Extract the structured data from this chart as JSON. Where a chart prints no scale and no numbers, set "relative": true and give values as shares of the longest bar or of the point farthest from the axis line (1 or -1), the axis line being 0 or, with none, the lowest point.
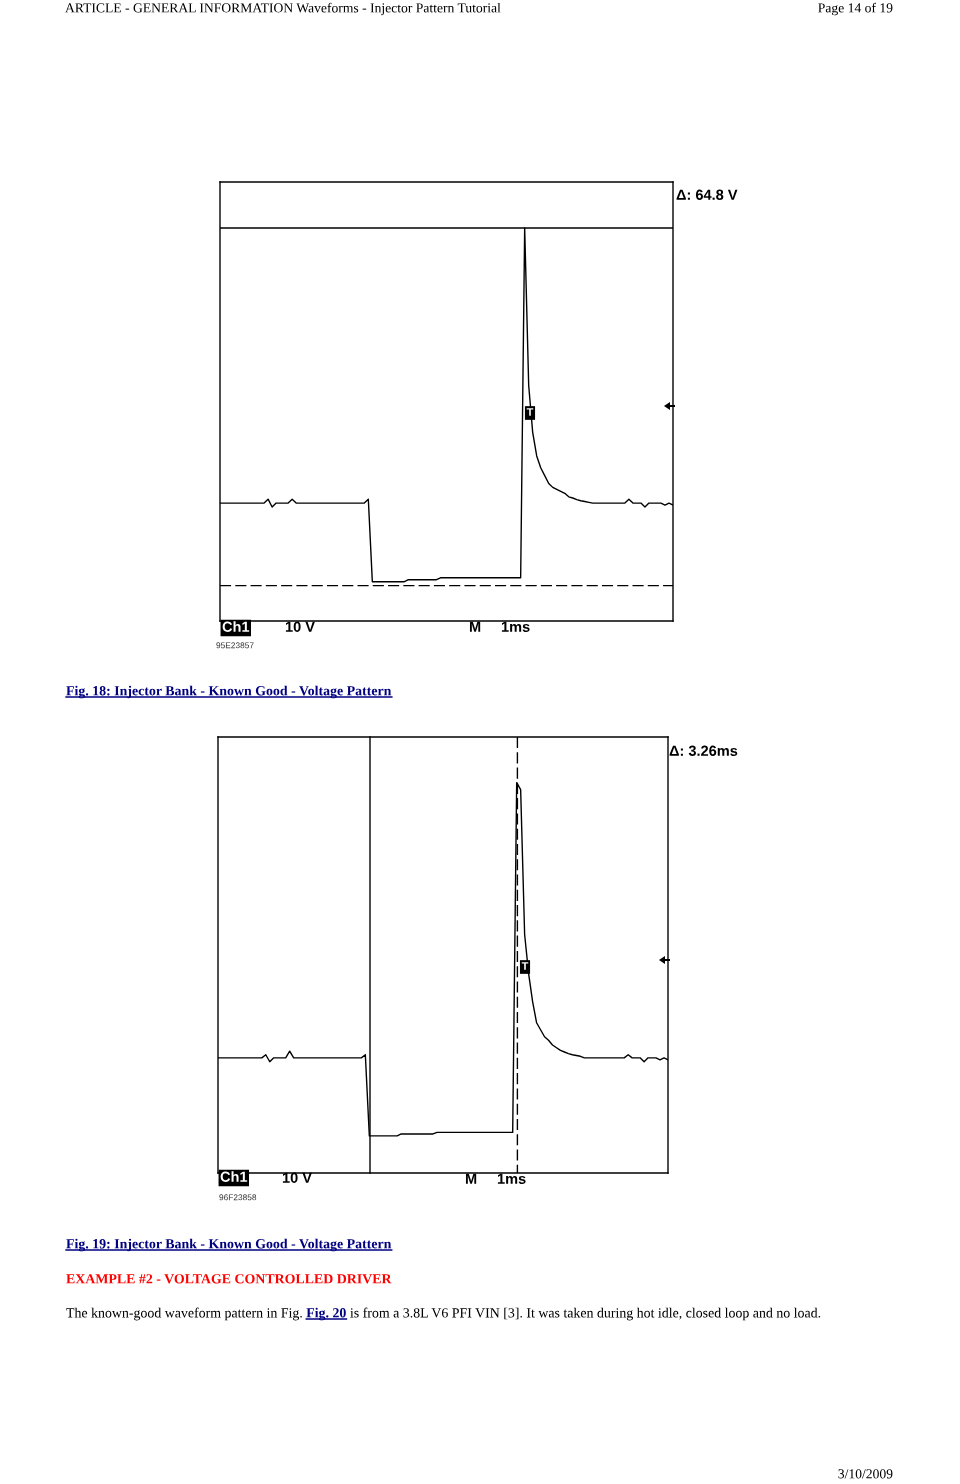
{
  "chart_data": [
    {
      "type": "line",
      "title": "Fig. 18: Injector Bank - Known Good - Voltage Pattern",
      "relative": true,
      "categories": [
        null,
        null,
        null,
        null,
        null,
        null,
        null,
        null,
        null,
        null,
        null,
        null,
        null,
        null,
        null,
        null,
        null,
        null,
        null,
        null,
        null,
        null,
        null,
        null,
        null,
        null,
        null,
        null,
        null,
        null,
        null,
        null,
        null,
        null,
        null,
        null,
        null,
        null,
        null,
        null,
        null,
        null,
        null,
        null,
        null,
        null,
        null,
        null,
        null,
        null,
        null,
        null,
        null,
        null,
        null,
        null,
        null,
        null,
        null,
        null,
        null,
        null,
        null,
        null,
        null,
        null,
        null,
        null,
        null,
        null,
        null,
        null,
        null,
        null,
        null,
        null,
        null,
        null,
        null,
        null,
        null,
        null,
        null,
        null,
        null,
        null,
        null,
        null,
        null,
        null,
        null,
        null,
        null,
        null,
        null,
        null,
        null,
        null,
        null,
        null,
        null,
        null,
        null,
        null,
        null,
        null,
        null,
        null,
        null,
        null,
        null,
        null,
        null,
        null
      ],
      "series": [
        {
          "color": "#000000",
          "values": [
            0.3,
            0.3,
            0.3,
            0.3,
            0.3,
            0.3,
            0.3,
            0.3,
            0.3,
            0.3,
            0.3,
            0.3,
            0.31,
            0.29,
            0.3,
            0.3,
            0.3,
            0.3,
            0.31,
            0.3,
            0.3,
            0.3,
            0.3,
            0.3,
            0.3,
            0.3,
            0.3,
            0.3,
            0.3,
            0.3,
            0.3,
            0.3,
            0.3,
            0.3,
            0.3,
            0.3,
            0.3,
            0.31,
            0.1,
            0.1,
            0.1,
            0.1,
            0.1,
            0.1,
            0.1,
            0.1,
            0.1,
            0.105,
            0.105,
            0.105,
            0.105,
            0.105,
            0.105,
            0.105,
            0.105,
            0.11,
            0.11,
            0.11,
            0.11,
            0.11,
            0.11,
            0.11,
            0.11,
            0.11,
            0.11,
            0.11,
            0.11,
            0.11,
            0.11,
            0.11,
            0.11,
            0.11,
            0.11,
            0.11,
            0.11,
            0.11,
            1,
            0.6,
            0.48,
            0.42,
            0.39,
            0.37,
            0.35,
            0.34,
            0.335,
            0.33,
            0.325,
            0.316,
            0.313,
            0.309,
            0.306,
            0.304,
            0.302,
            0.3,
            0.3,
            0.3,
            0.3,
            0.3,
            0.3,
            0.3,
            0.3,
            0.3,
            0.31,
            0.3,
            0.3,
            0.3,
            0.29,
            0.3,
            0.3,
            0.3,
            0.3,
            0.295,
            0.3,
            0.295
          ]
        }
      ],
      "ref_lines": [
        {
          "axis": "y",
          "value": 1,
          "color": "#000000",
          "line_style": "solid"
        },
        {
          "axis": "y",
          "value": 0.09,
          "color": "#000000",
          "line_style": "dashed"
        }
      ],
      "annotations": [
        "ARTICLE - GENERAL INFORMATION Waveforms - Injector Pattern Tutorial",
        "Page 14 of 19",
        "Δ: 64.8 V",
        "Ch1",
        "10 V",
        "M",
        "1ms",
        "T",
        "95E23857"
      ]
    },
    {
      "type": "line",
      "title": "Fig. 19: Injector Bank - Known Good - Voltage Pattern",
      "relative": true,
      "categories": [
        null,
        null,
        null,
        null,
        null,
        null,
        null,
        null,
        null,
        null,
        null,
        null,
        null,
        null,
        null,
        null,
        null,
        null,
        null,
        null,
        null,
        null,
        null,
        null,
        null,
        null,
        null,
        null,
        null,
        null,
        null,
        null,
        null,
        null,
        null,
        null,
        null,
        null,
        null,
        null,
        null,
        null,
        null,
        null,
        null,
        null,
        null,
        null,
        null,
        null,
        null,
        null,
        null,
        null,
        null,
        null,
        null,
        null,
        null,
        null,
        null,
        null,
        null,
        null,
        null,
        null,
        null,
        null,
        null,
        null,
        null,
        null,
        null,
        null,
        null,
        null,
        null,
        null,
        null,
        null,
        null,
        null,
        null,
        null,
        null,
        null,
        null,
        null,
        null,
        null,
        null,
        null,
        null,
        null,
        null,
        null,
        null,
        null,
        null,
        null,
        null,
        null,
        null,
        null,
        null,
        null,
        null,
        null,
        null,
        null,
        null,
        null,
        null,
        null
      ],
      "series": [
        {
          "color": "#000000",
          "values": [
            0.295,
            0.295,
            0.295,
            0.295,
            0.295,
            0.295,
            0.295,
            0.295,
            0.295,
            0.295,
            0.295,
            0.295,
            0.303,
            0.285,
            0.295,
            0.295,
            0.295,
            0.295,
            0.312,
            0.295,
            0.295,
            0.295,
            0.295,
            0.295,
            0.295,
            0.295,
            0.295,
            0.295,
            0.295,
            0.295,
            0.295,
            0.295,
            0.295,
            0.295,
            0.295,
            0.295,
            0.295,
            0.303,
            0.095,
            0.095,
            0.095,
            0.095,
            0.095,
            0.095,
            0.095,
            0.095,
            0.1,
            0.1,
            0.1,
            0.1,
            0.1,
            0.1,
            0.1,
            0.1,
            0.1,
            0.104,
            0.104,
            0.104,
            0.104,
            0.104,
            0.104,
            0.104,
            0.104,
            0.104,
            0.104,
            0.104,
            0.104,
            0.104,
            0.104,
            0.104,
            0.104,
            0.104,
            0.104,
            0.104,
            0.104,
            1,
            0.982,
            0.611,
            0.511,
            0.439,
            0.385,
            0.367,
            0.349,
            0.34,
            0.328,
            0.321,
            0.314,
            0.31,
            0.306,
            0.303,
            0.301,
            0.299,
            0.295,
            0.295,
            0.295,
            0.295,
            0.295,
            0.295,
            0.295,
            0.295,
            0.295,
            0.295,
            0.295,
            0.303,
            0.295,
            0.295,
            0.295,
            0.285,
            0.295,
            0.295,
            0.295,
            0.29,
            0.295,
            0.29
          ]
        }
      ],
      "annotations": [
        "Δ: 3.26ms",
        "Ch1",
        "10 V",
        "M",
        "1ms",
        "T",
        "96F23858",
        "EXAMPLE #2 - VOLTAGE CONTROLLED DRIVER",
        "The known-good waveform pattern in Fig.",
        "Fig. 20",
        "is from a 3.8L V6 PFI VIN [3]. It was taken during hot idle, closed loop and no load.",
        "3/10/2009"
      ]
    }
  ]
}
